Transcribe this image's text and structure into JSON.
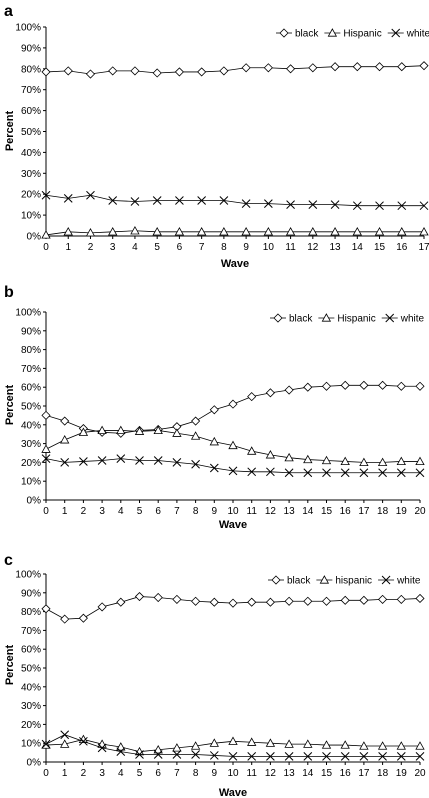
{
  "chart_data": [
    {
      "type": "line",
      "panel": "a",
      "xlabel": "Wave",
      "ylabel": "Percent",
      "ylim": [
        0,
        100
      ],
      "yticks": [
        "0%",
        "10%",
        "20%",
        "30%",
        "40%",
        "50%",
        "60%",
        "70%",
        "80%",
        "90%",
        "100%"
      ],
      "x": [
        0,
        1,
        2,
        3,
        4,
        5,
        6,
        7,
        8,
        9,
        10,
        11,
        12,
        13,
        14,
        15,
        16,
        17
      ],
      "legend_position": "top-right",
      "series": [
        {
          "name": "black",
          "marker": "diamond",
          "values": [
            78.5,
            79,
            77.5,
            79,
            79,
            78,
            78.5,
            78.5,
            79,
            80.5,
            80.5,
            80,
            80.5,
            81,
            81,
            81,
            81,
            81.5
          ]
        },
        {
          "name": "Hispanic",
          "marker": "triangle",
          "values": [
            0.5,
            2,
            1.5,
            2,
            2.5,
            2,
            2,
            2,
            2,
            2,
            2,
            2,
            2,
            2,
            2,
            2,
            2,
            2
          ]
        },
        {
          "name": "white",
          "marker": "x",
          "values": [
            19.5,
            18,
            19.5,
            17,
            16.5,
            17,
            17,
            17,
            17,
            15.5,
            15.5,
            15,
            15,
            15,
            14.5,
            14.5,
            14.5,
            14.5
          ]
        }
      ]
    },
    {
      "type": "line",
      "panel": "b",
      "xlabel": "Wave",
      "ylabel": "Percent",
      "ylim": [
        0,
        100
      ],
      "yticks": [
        "0%",
        "10%",
        "20%",
        "30%",
        "40%",
        "50%",
        "60%",
        "70%",
        "80%",
        "90%",
        "100%"
      ],
      "x": [
        0,
        1,
        2,
        3,
        4,
        5,
        6,
        7,
        8,
        9,
        10,
        11,
        12,
        13,
        14,
        15,
        16,
        17,
        18,
        19,
        20
      ],
      "legend_position": "top-right",
      "series": [
        {
          "name": "black",
          "marker": "diamond",
          "values": [
            45,
            42,
            38,
            36,
            35.5,
            37,
            37.5,
            39,
            42,
            48,
            51,
            55,
            57,
            58.5,
            60,
            60.5,
            61,
            61,
            61,
            60.5,
            60.5
          ]
        },
        {
          "name": "Hispanic",
          "marker": "triangle",
          "values": [
            27,
            32,
            36,
            37,
            37,
            36.5,
            37,
            35.5,
            34,
            31,
            29,
            26,
            24,
            22.5,
            21.5,
            21,
            20.5,
            20,
            20,
            20.5,
            20.5
          ]
        },
        {
          "name": "white",
          "marker": "x",
          "values": [
            22,
            20,
            20.5,
            21,
            22,
            21,
            21,
            20,
            19,
            17,
            15.5,
            15,
            15,
            14.5,
            14.5,
            14.5,
            14.5,
            14.5,
            14.5,
            14.5,
            14.5
          ]
        }
      ]
    },
    {
      "type": "line",
      "panel": "c",
      "xlabel": "Wave",
      "ylabel": "Percent",
      "ylim": [
        0,
        100
      ],
      "yticks": [
        "0%",
        "10%",
        "20%",
        "30%",
        "40%",
        "50%",
        "60%",
        "70%",
        "80%",
        "90%",
        "100%"
      ],
      "x": [
        0,
        1,
        2,
        3,
        4,
        5,
        6,
        7,
        8,
        9,
        10,
        11,
        12,
        13,
        14,
        15,
        16,
        17,
        18,
        19,
        20
      ],
      "legend_position": "top-right",
      "series": [
        {
          "name": "black",
          "marker": "diamond",
          "values": [
            81.5,
            76,
            76.5,
            82.5,
            85,
            88,
            87.5,
            86.5,
            85.5,
            85,
            84.5,
            85,
            85,
            85.5,
            85.5,
            85.5,
            86,
            86,
            86.5,
            86.5,
            87
          ]
        },
        {
          "name": "hispanic",
          "marker": "triangle",
          "values": [
            9,
            9.5,
            12,
            9.5,
            8,
            5.5,
            6.5,
            7.5,
            8.5,
            10,
            11,
            10.5,
            10,
            9.5,
            9.5,
            9,
            9,
            8.5,
            8.5,
            8.5,
            8.5
          ]
        },
        {
          "name": "white",
          "marker": "x",
          "values": [
            9.5,
            14.5,
            11,
            7.5,
            5.5,
            4,
            4,
            4,
            4,
            3.5,
            3,
            3,
            3,
            3,
            3,
            3,
            3,
            3,
            3,
            3,
            3
          ]
        }
      ]
    }
  ]
}
